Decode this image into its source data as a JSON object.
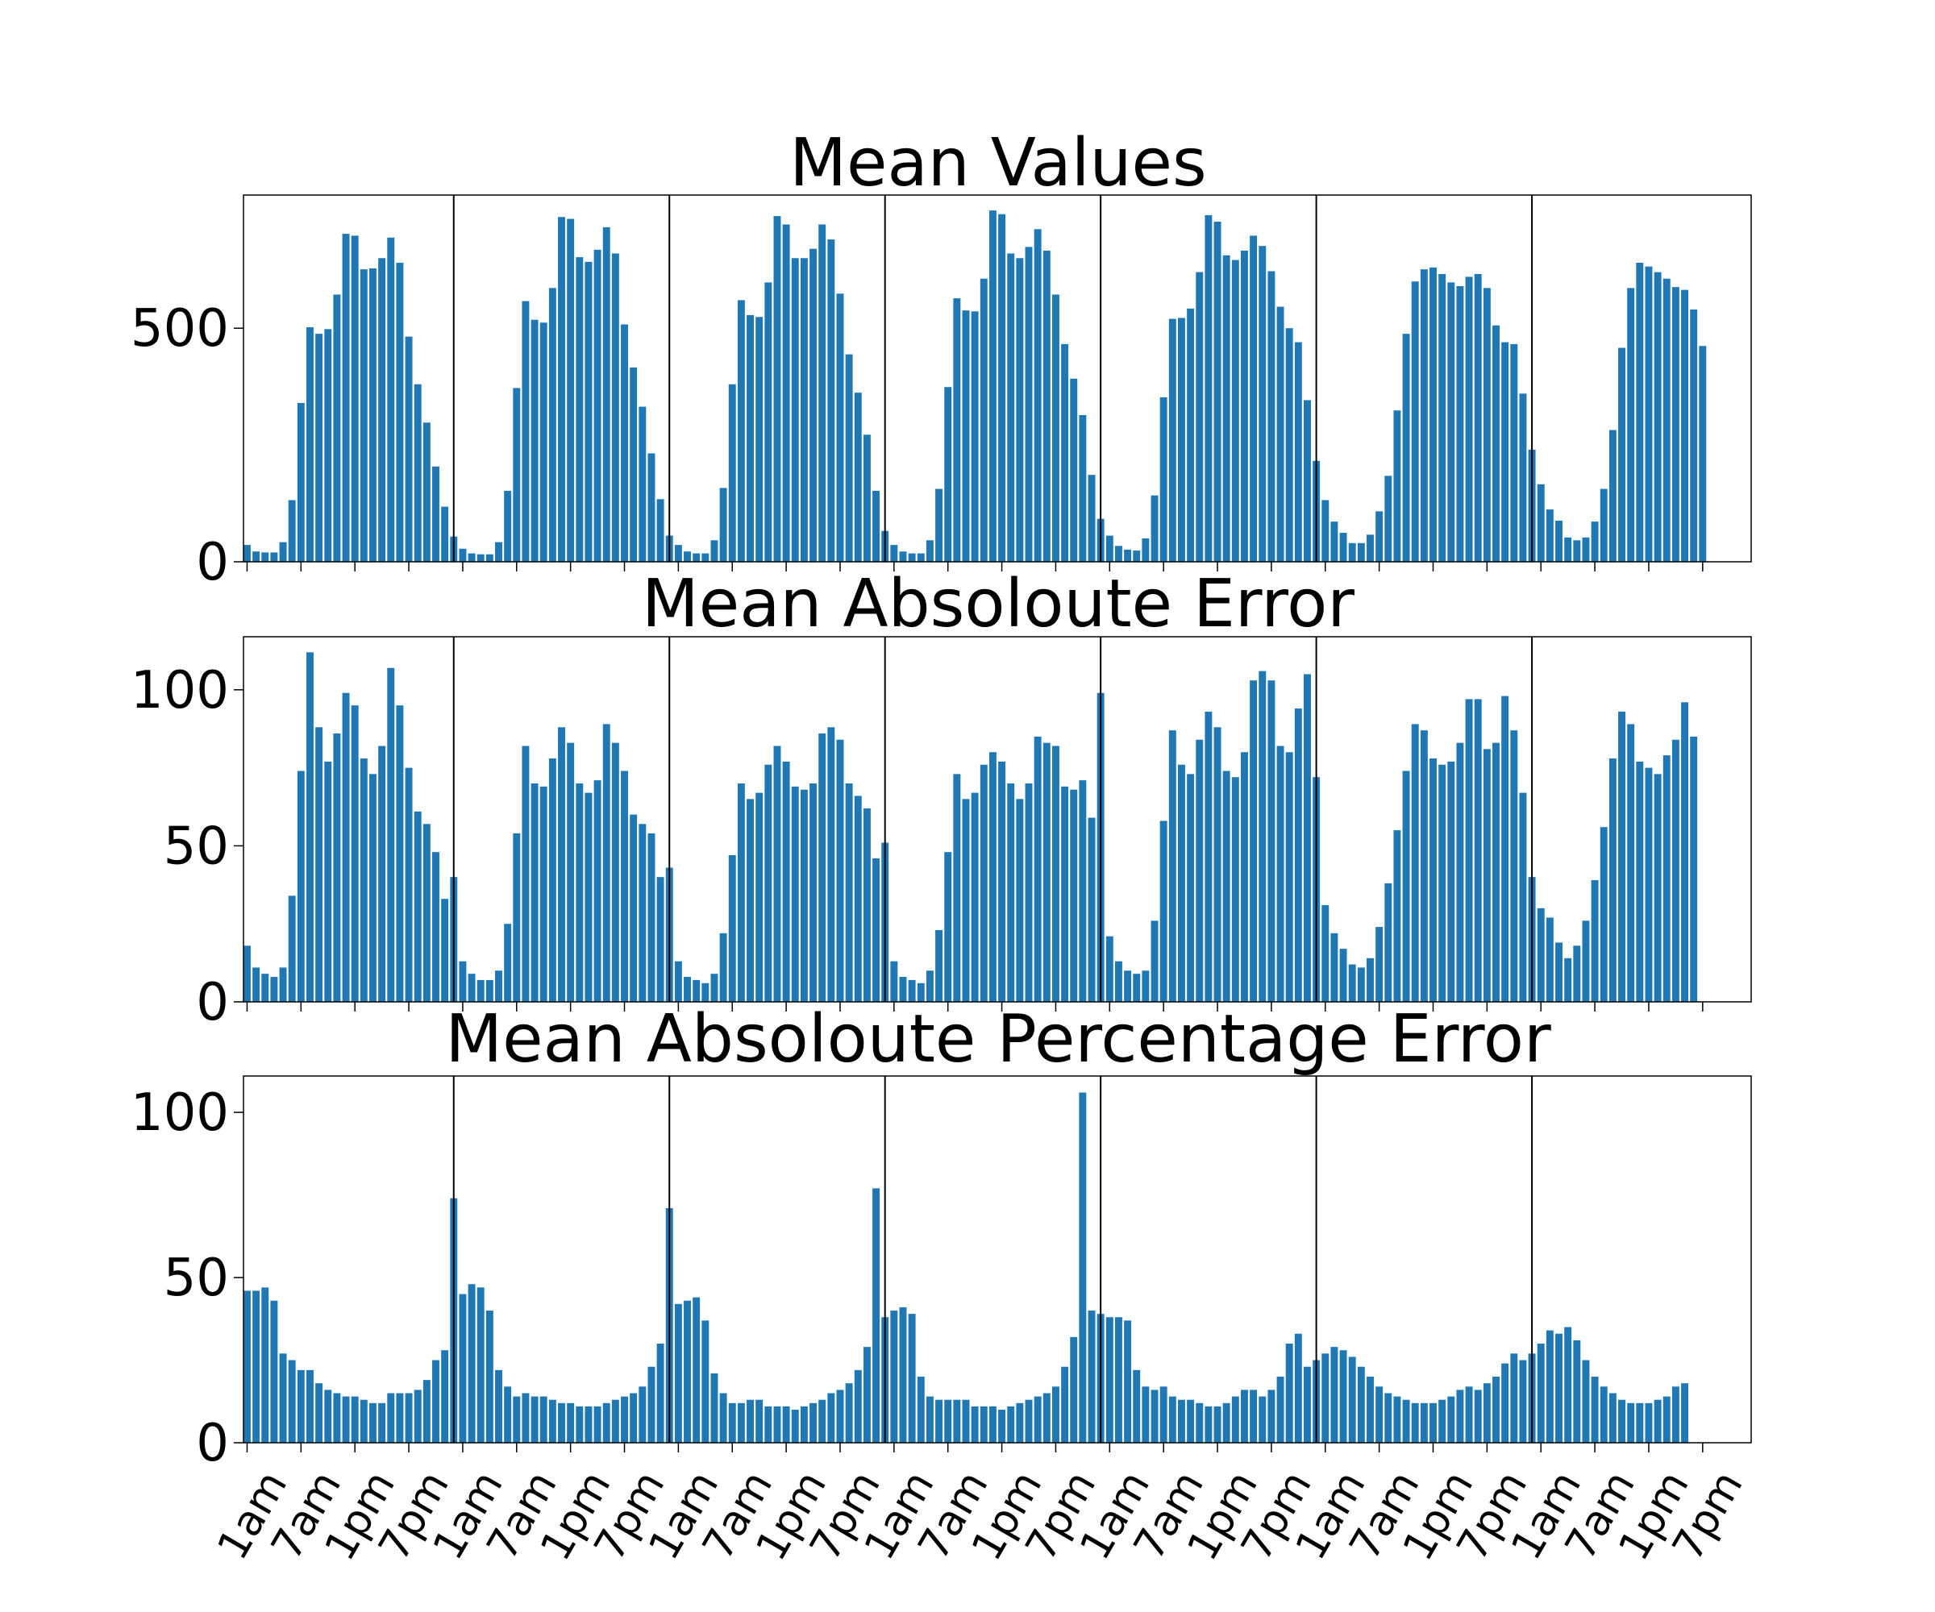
{
  "colors": {
    "bar": "#1f77b4",
    "axis": "#000000",
    "separator": "#000000"
  },
  "chart_data": [
    {
      "type": "bar",
      "title": "Mean Values",
      "ylim": [
        0,
        785
      ],
      "yticks": [
        0,
        500
      ],
      "grid": false,
      "day_separators": [
        24,
        48,
        72,
        96,
        120,
        144
      ],
      "values": [
        36,
        22,
        20,
        20,
        42,
        132,
        340,
        502,
        488,
        498,
        572,
        702,
        698,
        626,
        628,
        650,
        694,
        640,
        482,
        380,
        298,
        204,
        118,
        54,
        28,
        18,
        16,
        16,
        42,
        152,
        372,
        558,
        518,
        512,
        586,
        738,
        734,
        652,
        642,
        668,
        716,
        660,
        508,
        416,
        332,
        232,
        134,
        56,
        36,
        22,
        18,
        18,
        46,
        158,
        380,
        560,
        528,
        524,
        598,
        740,
        722,
        650,
        650,
        670,
        722,
        690,
        574,
        444,
        362,
        272,
        152,
        66,
        36,
        22,
        18,
        18,
        46,
        156,
        374,
        564,
        538,
        536,
        606,
        752,
        744,
        660,
        650,
        674,
        712,
        666,
        572,
        466,
        392,
        314,
        186,
        92,
        56,
        34,
        26,
        24,
        50,
        142,
        352,
        520,
        522,
        542,
        620,
        742,
        728,
        656,
        646,
        666,
        698,
        676,
        622,
        546,
        500,
        470,
        346,
        216,
        132,
        86,
        62,
        40,
        40,
        58,
        108,
        184,
        324,
        488,
        600,
        626,
        630,
        616,
        598,
        590,
        610,
        616,
        586,
        506,
        470,
        466,
        360,
        240,
        166,
        112,
        88,
        52,
        46,
        52,
        86,
        156,
        282,
        458,
        586,
        640,
        632,
        620,
        606,
        588,
        582,
        540,
        462
      ]
    },
    {
      "type": "bar",
      "title": "Mean Absoloute Error",
      "ylim": [
        0,
        117
      ],
      "yticks": [
        0,
        50,
        100
      ],
      "grid": false,
      "day_separators": [
        24,
        48,
        72,
        96,
        120,
        144
      ],
      "values": [
        18,
        11,
        9,
        8,
        11,
        34,
        74,
        112,
        88,
        77,
        86,
        99,
        95,
        78,
        73,
        82,
        107,
        95,
        75,
        61,
        57,
        48,
        33,
        40,
        13,
        9,
        7,
        7,
        10,
        25,
        54,
        82,
        70,
        69,
        78,
        88,
        83,
        70,
        67,
        71,
        89,
        83,
        74,
        60,
        57,
        54,
        40,
        43,
        13,
        8,
        7,
        6,
        9,
        22,
        47,
        70,
        65,
        67,
        76,
        82,
        77,
        69,
        68,
        70,
        86,
        88,
        84,
        70,
        66,
        62,
        46,
        51,
        13,
        8,
        7,
        6,
        10,
        23,
        48,
        73,
        65,
        67,
        76,
        80,
        77,
        70,
        65,
        70,
        85,
        83,
        82,
        69,
        68,
        71,
        59,
        99,
        21,
        13,
        10,
        9,
        10,
        26,
        58,
        87,
        76,
        73,
        84,
        93,
        88,
        74,
        72,
        80,
        103,
        106,
        103,
        82,
        80,
        94,
        105,
        72,
        31,
        22,
        17,
        12,
        11,
        14,
        24,
        38,
        55,
        74,
        89,
        87,
        78,
        76,
        77,
        83,
        97,
        97,
        81,
        83,
        98,
        87,
        67,
        40,
        30,
        27,
        19,
        14,
        18,
        26,
        39,
        56,
        78,
        93,
        89,
        77,
        75,
        73,
        79,
        84,
        96,
        85
      ]
    },
    {
      "type": "bar",
      "title": "Mean Absoloute Percentage Error",
      "ylim": [
        0,
        111
      ],
      "yticks": [
        0,
        50,
        100
      ],
      "grid": false,
      "day_separators": [
        24,
        48,
        72,
        96,
        120,
        144
      ],
      "values": [
        46,
        46,
        47,
        43,
        27,
        25,
        22,
        22,
        18,
        16,
        15,
        14,
        14,
        13,
        12,
        12,
        15,
        15,
        15,
        16,
        19,
        25,
        28,
        74,
        45,
        48,
        47,
        40,
        22,
        17,
        14,
        15,
        14,
        14,
        13,
        12,
        12,
        11,
        11,
        11,
        12,
        13,
        14,
        15,
        17,
        23,
        30,
        71,
        42,
        43,
        44,
        37,
        21,
        15,
        12,
        12,
        13,
        13,
        11,
        11,
        11,
        10,
        11,
        12,
        13,
        15,
        16,
        18,
        22,
        29,
        77,
        38,
        40,
        41,
        39,
        20,
        14,
        13,
        13,
        13,
        13,
        11,
        11,
        11,
        10,
        11,
        12,
        13,
        14,
        15,
        17,
        23,
        32,
        106,
        40,
        39,
        38,
        38,
        37,
        22,
        17,
        16,
        17,
        14,
        13,
        13,
        12,
        11,
        11,
        12,
        14,
        16,
        16,
        14,
        16,
        20,
        30,
        33,
        23,
        25,
        27,
        29,
        28,
        26,
        23,
        20,
        17,
        15,
        14,
        13,
        12,
        12,
        12,
        13,
        14,
        16,
        17,
        16,
        18,
        20,
        24,
        27,
        25,
        27,
        30,
        34,
        33,
        35,
        31,
        25,
        20,
        17,
        15,
        13,
        12,
        12,
        12,
        13,
        14,
        17,
        18
      ]
    }
  ],
  "xaxis": {
    "tick_labels": [
      "1am",
      "7am",
      "1pm",
      "7pm",
      "1am",
      "7am",
      "1pm",
      "7pm",
      "1am",
      "7am",
      "1pm",
      "7pm",
      "1am",
      "7am",
      "1pm",
      "7pm",
      "1am",
      "7am",
      "1pm",
      "7pm",
      "1am",
      "7am",
      "1pm",
      "7pm",
      "1am",
      "7am",
      "1pm",
      "7pm"
    ],
    "tick_positions": [
      0,
      6,
      12,
      18,
      24,
      30,
      36,
      42,
      48,
      54,
      60,
      66,
      72,
      78,
      84,
      90,
      96,
      102,
      108,
      114,
      120,
      126,
      132,
      138,
      144,
      150,
      156,
      162
    ]
  }
}
